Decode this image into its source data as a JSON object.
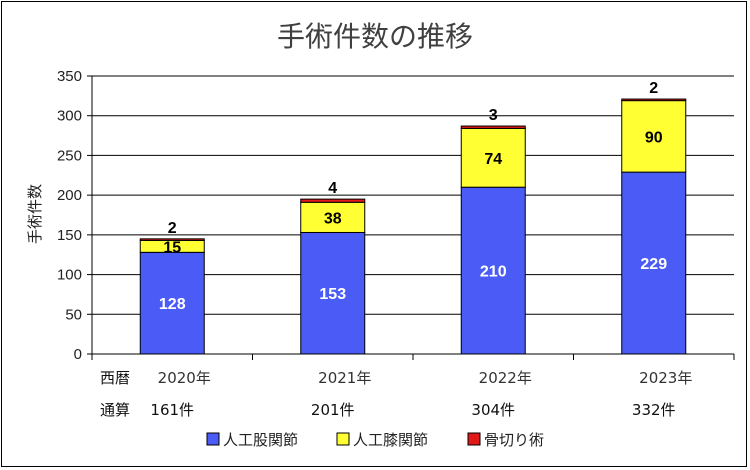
{
  "chart_data": {
    "type": "bar",
    "stacked": true,
    "title": "手術件数の推移",
    "ylabel": "手術件数",
    "ylim": [
      0,
      350
    ],
    "yticks": [
      0,
      50,
      100,
      150,
      200,
      250,
      300,
      350
    ],
    "grid": true,
    "legend_position": "bottom",
    "x_row_label": "西暦",
    "categories": [
      "2020年",
      "2021年",
      "2022年",
      "2023年"
    ],
    "totals_row_label": "通算",
    "totals": [
      "161件",
      "201件",
      "304件",
      "332件"
    ],
    "series": [
      {
        "name": "人工股関節",
        "values": [
          128,
          153,
          210,
          229
        ],
        "color": "#4a5cf5",
        "label_color": "white"
      },
      {
        "name": "人工膝関節",
        "values": [
          15,
          38,
          74,
          90
        ],
        "color": "#ffff33",
        "label_color": "black"
      },
      {
        "name": "骨切り術",
        "values": [
          2,
          4,
          3,
          2
        ],
        "color": "#e01818",
        "label_color": "black"
      }
    ]
  }
}
